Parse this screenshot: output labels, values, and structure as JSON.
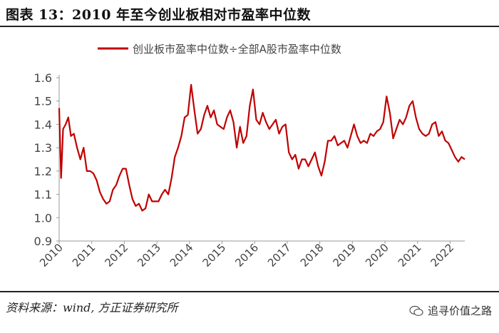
{
  "title": "图表 13：2010 年至今创业板相对市盈率中位数",
  "source": "资料来源：wind, 方正证券研究所",
  "watermark": "追寻价值之路",
  "colors": {
    "series": "#c00000",
    "axis": "#999999",
    "text": "#444444"
  },
  "chart_data": {
    "type": "line",
    "title": "",
    "xlabel": "",
    "ylabel": "",
    "legend_position": "top-center",
    "grid": false,
    "ylim": [
      0.9,
      1.6
    ],
    "yticks": [
      "0.9",
      "1.0",
      "1.1",
      "1.2",
      "1.3",
      "1.4",
      "1.5",
      "1.6"
    ],
    "xlim": [
      2010,
      2022.45
    ],
    "xticks": [
      "2010",
      "2011",
      "2012",
      "2013",
      "2014",
      "2015",
      "2016",
      "2017",
      "2018",
      "2019",
      "2020",
      "2021",
      "2022"
    ],
    "series": [
      {
        "name": "创业板市盈率中位数÷全部A股市盈率中位数",
        "x": [
          2010.0,
          2010.06,
          2010.12,
          2010.2,
          2010.28,
          2010.36,
          2010.45,
          2010.55,
          2010.65,
          2010.75,
          2010.85,
          2010.95,
          2011.05,
          2011.15,
          2011.25,
          2011.35,
          2011.45,
          2011.55,
          2011.65,
          2011.75,
          2011.85,
          2011.95,
          2012.05,
          2012.15,
          2012.25,
          2012.35,
          2012.45,
          2012.55,
          2012.65,
          2012.75,
          2012.85,
          2012.95,
          2013.05,
          2013.15,
          2013.25,
          2013.35,
          2013.45,
          2013.55,
          2013.65,
          2013.75,
          2013.85,
          2013.95,
          2014.05,
          2014.15,
          2014.25,
          2014.35,
          2014.45,
          2014.55,
          2014.65,
          2014.75,
          2014.85,
          2014.95,
          2015.05,
          2015.15,
          2015.25,
          2015.35,
          2015.45,
          2015.55,
          2015.65,
          2015.75,
          2015.85,
          2015.95,
          2016.05,
          2016.15,
          2016.25,
          2016.35,
          2016.45,
          2016.55,
          2016.65,
          2016.75,
          2016.85,
          2016.95,
          2017.05,
          2017.15,
          2017.25,
          2017.35,
          2017.45,
          2017.55,
          2017.65,
          2017.75,
          2017.85,
          2017.95,
          2018.05,
          2018.15,
          2018.25,
          2018.35,
          2018.45,
          2018.55,
          2018.65,
          2018.75,
          2018.85,
          2018.95,
          2019.05,
          2019.15,
          2019.25,
          2019.35,
          2019.45,
          2019.55,
          2019.65,
          2019.75,
          2019.85,
          2019.95,
          2020.05,
          2020.15,
          2020.25,
          2020.35,
          2020.45,
          2020.55,
          2020.65,
          2020.75,
          2020.85,
          2020.95,
          2021.05,
          2021.15,
          2021.25,
          2021.35,
          2021.45,
          2021.55,
          2021.65,
          2021.75,
          2021.85,
          2021.95,
          2022.05,
          2022.15,
          2022.25,
          2022.35,
          2022.45
        ],
        "values": [
          1.47,
          1.17,
          1.38,
          1.4,
          1.43,
          1.35,
          1.36,
          1.3,
          1.25,
          1.3,
          1.2,
          1.2,
          1.19,
          1.16,
          1.11,
          1.08,
          1.06,
          1.07,
          1.12,
          1.14,
          1.18,
          1.21,
          1.21,
          1.14,
          1.08,
          1.05,
          1.06,
          1.03,
          1.04,
          1.1,
          1.07,
          1.07,
          1.07,
          1.1,
          1.12,
          1.1,
          1.17,
          1.26,
          1.3,
          1.35,
          1.43,
          1.44,
          1.57,
          1.46,
          1.36,
          1.38,
          1.44,
          1.48,
          1.43,
          1.46,
          1.4,
          1.39,
          1.38,
          1.43,
          1.46,
          1.41,
          1.3,
          1.39,
          1.32,
          1.35,
          1.48,
          1.55,
          1.42,
          1.4,
          1.45,
          1.41,
          1.38,
          1.4,
          1.42,
          1.36,
          1.39,
          1.4,
          1.28,
          1.25,
          1.27,
          1.21,
          1.25,
          1.25,
          1.22,
          1.25,
          1.28,
          1.22,
          1.18,
          1.24,
          1.33,
          1.33,
          1.35,
          1.31,
          1.32,
          1.33,
          1.3,
          1.35,
          1.4,
          1.35,
          1.32,
          1.33,
          1.32,
          1.36,
          1.35,
          1.37,
          1.38,
          1.41,
          1.52,
          1.45,
          1.34,
          1.38,
          1.42,
          1.4,
          1.43,
          1.48,
          1.5,
          1.43,
          1.38,
          1.36,
          1.35,
          1.36,
          1.4,
          1.41,
          1.35,
          1.37,
          1.33,
          1.32,
          1.29,
          1.26,
          1.24,
          1.26,
          1.25
        ]
      }
    ]
  }
}
